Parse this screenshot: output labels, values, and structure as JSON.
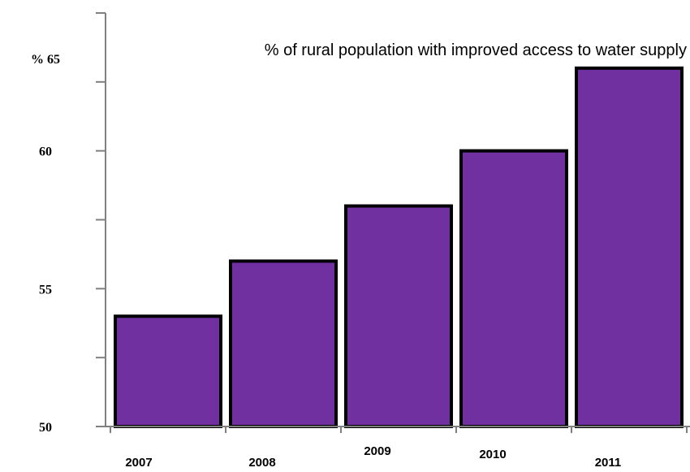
{
  "chart_data": {
    "type": "bar",
    "title": "% of rural population with improved access to water supply",
    "categories": [
      "2007",
      "2008",
      "2009",
      "2010",
      "2011"
    ],
    "values": [
      54,
      56,
      58,
      60,
      63
    ],
    "ylim": [
      50,
      65
    ],
    "yticks": [
      50,
      55,
      60,
      65
    ],
    "ytick_labels": [
      "50",
      "55",
      "60",
      "% 65"
    ],
    "grid": false,
    "legend": "none",
    "bar_color": "#7030a0",
    "bar_edge_color": "#000000",
    "axis_color": "#808080"
  }
}
